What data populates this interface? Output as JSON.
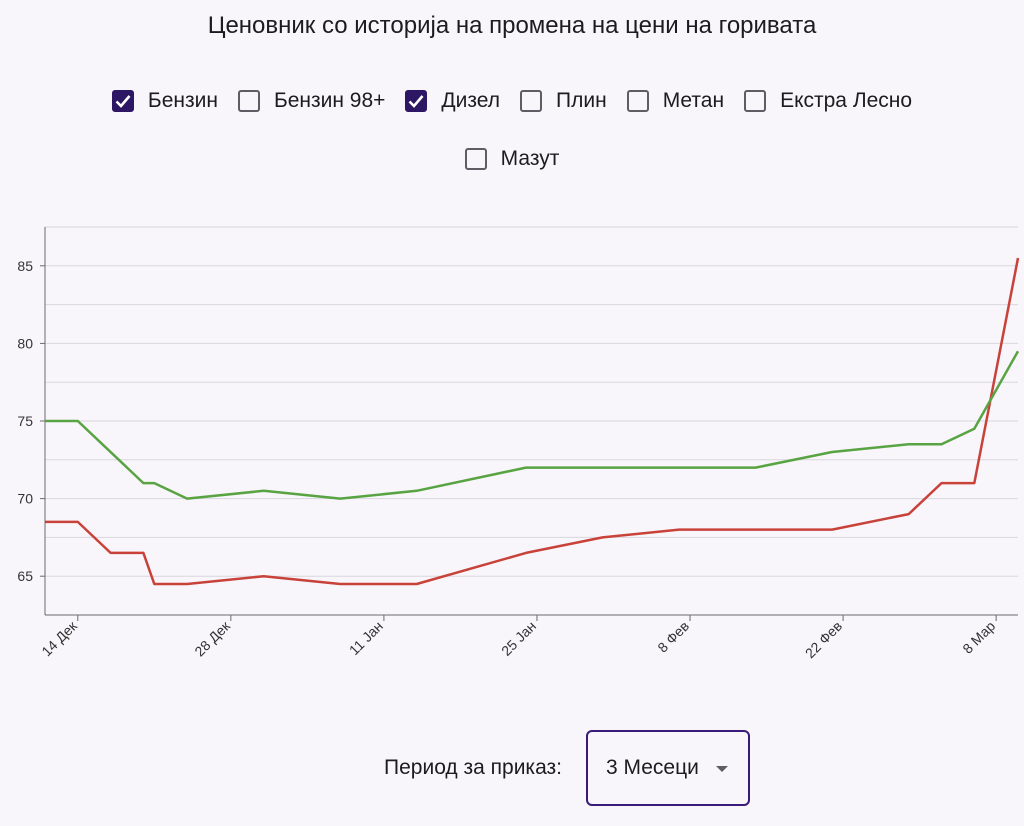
{
  "title": "Ценовник со историја на промена на цени на горивата",
  "filters": [
    {
      "label": "Бензин",
      "checked": true
    },
    {
      "label": "Бензин 98+",
      "checked": false
    },
    {
      "label": "Дизел",
      "checked": true
    },
    {
      "label": "Плин",
      "checked": false
    },
    {
      "label": "Метан",
      "checked": false
    },
    {
      "label": "Екстра Лесно",
      "checked": false
    },
    {
      "label": "Мазут",
      "checked": false
    }
  ],
  "period": {
    "label": "Период за приказ:",
    "value": "3 Месеци"
  },
  "colors": {
    "accent": "#2d1764",
    "petrol": "#c8423a",
    "diesel": "#58a342"
  },
  "chart_data": {
    "type": "line",
    "title": "",
    "xlabel": "",
    "ylabel": "",
    "ylim": [
      62.5,
      87.5
    ],
    "xlim": [
      "2021-12-11",
      "2022-03-10"
    ],
    "grid": true,
    "yticks": [
      65,
      70,
      75,
      80,
      85
    ],
    "xticks": [
      {
        "date": "2021-12-14",
        "label": "14 Дек"
      },
      {
        "date": "2021-12-28",
        "label": "28 Дек"
      },
      {
        "date": "2022-01-11",
        "label": "11 Јан"
      },
      {
        "date": "2022-01-25",
        "label": "25 Јан"
      },
      {
        "date": "2022-02-08",
        "label": "8 Фев"
      },
      {
        "date": "2022-02-22",
        "label": "22 Фев"
      },
      {
        "date": "2022-03-08",
        "label": "8 Мар"
      }
    ],
    "series": [
      {
        "color": "#c8423a",
        "points": [
          [
            "2021-12-11",
            68.5
          ],
          [
            "2021-12-14",
            68.5
          ],
          [
            "2021-12-17",
            66.5
          ],
          [
            "2021-12-20",
            66.5
          ],
          [
            "2021-12-21",
            64.5
          ],
          [
            "2021-12-24",
            64.5
          ],
          [
            "2021-12-31",
            65.0
          ],
          [
            "2022-01-07",
            64.5
          ],
          [
            "2022-01-14",
            64.5
          ],
          [
            "2022-01-24",
            66.5
          ],
          [
            "2022-01-31",
            67.5
          ],
          [
            "2022-02-07",
            68.0
          ],
          [
            "2022-02-21",
            68.0
          ],
          [
            "2022-02-28",
            69.0
          ],
          [
            "2022-03-03",
            71.0
          ],
          [
            "2022-03-06",
            71.0
          ],
          [
            "2022-03-10",
            85.5
          ]
        ]
      },
      {
        "color": "#58a342",
        "points": [
          [
            "2021-12-11",
            75.0
          ],
          [
            "2021-12-14",
            75.0
          ],
          [
            "2021-12-20",
            71.0
          ],
          [
            "2021-12-21",
            71.0
          ],
          [
            "2021-12-24",
            70.0
          ],
          [
            "2021-12-31",
            70.5
          ],
          [
            "2022-01-07",
            70.0
          ],
          [
            "2022-01-14",
            70.5
          ],
          [
            "2022-01-24",
            72.0
          ],
          [
            "2022-02-14",
            72.0
          ],
          [
            "2022-02-21",
            73.0
          ],
          [
            "2022-02-28",
            73.5
          ],
          [
            "2022-03-03",
            73.5
          ],
          [
            "2022-03-06",
            74.5
          ],
          [
            "2022-03-10",
            79.5
          ]
        ]
      }
    ]
  }
}
